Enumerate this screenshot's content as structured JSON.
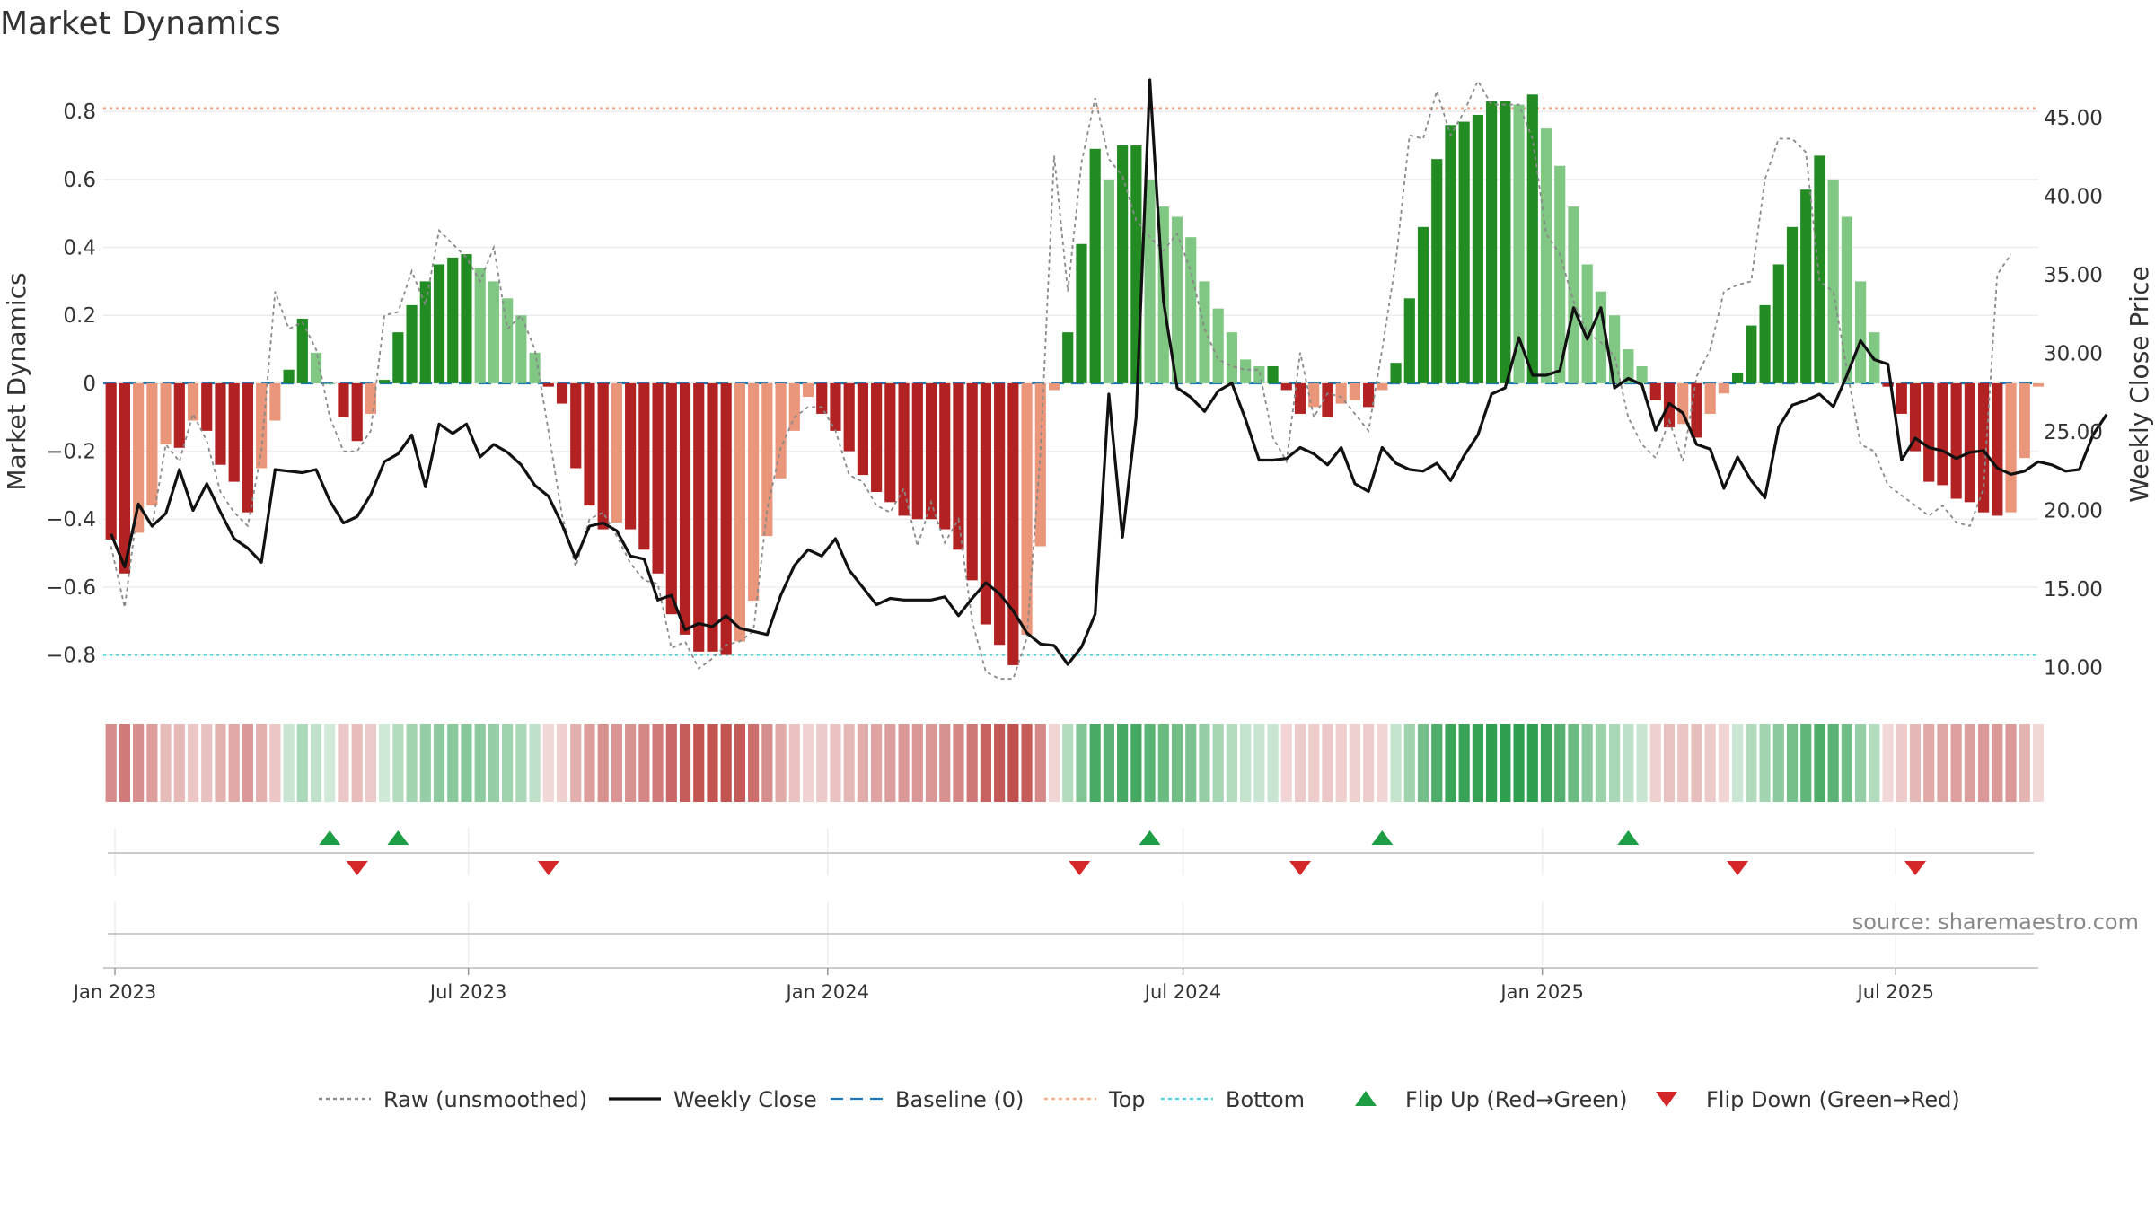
{
  "chart_data": {
    "type": "bar",
    "title": "Market Dynamics",
    "source": "source: sharemaestro.com",
    "ylabel_left": "Market Dynamics",
    "ylabel_right": "Weekly Close Price",
    "ylim_left": [
      -0.92,
      0.93
    ],
    "ylim_right": [
      8.2,
      48.2
    ],
    "left_ticks": [
      "0.8",
      "0.6",
      "0.4",
      "0.2",
      "0",
      "−0.2",
      "−0.4",
      "−0.6",
      "−0.8"
    ],
    "left_tick_values": [
      0.8,
      0.6,
      0.4,
      0.2,
      0,
      -0.2,
      -0.4,
      -0.6,
      -0.8
    ],
    "right_ticks": [
      "45.00",
      "40.00",
      "35.00",
      "30.00",
      "25.00",
      "20.00",
      "15.00",
      "10.00"
    ],
    "right_tick_values": [
      45,
      40,
      35,
      30,
      25,
      20,
      15,
      10
    ],
    "x_start": "2022-12-26",
    "x_end": "2025-09-12",
    "x_ticks": [
      {
        "label": "Jan 2023",
        "date": "2023-01-01"
      },
      {
        "label": "Jul 2023",
        "date": "2023-07-01"
      },
      {
        "label": "Jan 2024",
        "date": "2024-01-01"
      },
      {
        "label": "Jul 2024",
        "date": "2024-07-01"
      },
      {
        "label": "Jan 2025",
        "date": "2025-01-01"
      },
      {
        "label": "Jul 2025",
        "date": "2025-07-01"
      }
    ],
    "first_week": "2022-12-30",
    "reference_lines": {
      "top": 0.81,
      "bottom": -0.8,
      "baseline": 0
    },
    "grid": true,
    "legend_position": "bottom",
    "colors": {
      "strong_up": "#228b22",
      "weak_up": "#81c784",
      "strong_down": "#b22222",
      "weak_down": "#e9967a",
      "close_line": "#111111",
      "raw_line": "#888888",
      "top_line": "#f4a582",
      "bottom_line": "#4dd0e1",
      "baseline": "#1f77b4",
      "flip_up": "#1e9e44",
      "flip_down": "#d62728"
    },
    "series": [
      {
        "name": "Market Dynamics",
        "values": [
          -0.46,
          -0.56,
          -0.44,
          -0.36,
          -0.18,
          -0.19,
          -0.11,
          -0.14,
          -0.24,
          -0.29,
          -0.38,
          -0.25,
          -0.11,
          0.04,
          0.19,
          0.09,
          0,
          -0.1,
          -0.17,
          -0.09,
          0.01,
          0.15,
          0.23,
          0.3,
          0.35,
          0.37,
          0.38,
          0.34,
          0.3,
          0.25,
          0.2,
          0.09,
          -0.01,
          -0.06,
          -0.25,
          -0.36,
          -0.43,
          -0.41,
          -0.43,
          -0.49,
          -0.56,
          -0.68,
          -0.74,
          -0.79,
          -0.79,
          -0.8,
          -0.76,
          -0.64,
          -0.45,
          -0.28,
          -0.14,
          -0.04,
          -0.09,
          -0.14,
          -0.2,
          -0.27,
          -0.32,
          -0.35,
          -0.39,
          -0.4,
          -0.4,
          -0.43,
          -0.49,
          -0.58,
          -0.71,
          -0.77,
          -0.83,
          -0.74,
          -0.48,
          -0.02,
          0.15,
          0.41,
          0.69,
          0.6,
          0.7,
          0.7,
          0.6,
          0.52,
          0.49,
          0.43,
          0.3,
          0.22,
          0.15,
          0.07,
          0.05,
          0.05,
          -0.02,
          -0.09,
          -0.07,
          -0.1,
          -0.06,
          -0.05,
          -0.07,
          -0.02,
          0.06,
          0.25,
          0.46,
          0.66,
          0.76,
          0.77,
          0.79,
          0.83,
          0.83,
          0.82,
          0.85,
          0.75,
          0.64,
          0.52,
          0.35,
          0.27,
          0.2,
          0.1,
          0.05,
          -0.05,
          -0.13,
          -0.12,
          -0.16,
          -0.09,
          -0.03,
          0.03,
          0.17,
          0.23,
          0.35,
          0.46,
          0.57,
          0.67,
          0.6,
          0.49,
          0.3,
          0.15,
          -0.01,
          -0.09,
          -0.2,
          -0.29,
          -0.3,
          -0.34,
          -0.35,
          -0.38,
          -0.39,
          -0.38,
          -0.22,
          -0.01
        ]
      },
      {
        "name": "Raw (unsmoothed)",
        "values": [
          -0.48,
          -0.66,
          -0.35,
          -0.42,
          -0.18,
          -0.23,
          -0.09,
          -0.17,
          -0.32,
          -0.38,
          -0.42,
          -0.2,
          0.27,
          0.16,
          0.18,
          0.1,
          -0.1,
          -0.2,
          -0.2,
          -0.14,
          0.2,
          0.21,
          0.33,
          0.23,
          0.45,
          0.41,
          0.37,
          0.3,
          0.4,
          0.16,
          0.2,
          0.1,
          -0.14,
          -0.39,
          -0.54,
          -0.4,
          -0.38,
          -0.45,
          -0.53,
          -0.58,
          -0.59,
          -0.78,
          -0.76,
          -0.84,
          -0.81,
          -0.77,
          -0.76,
          -0.73,
          -0.37,
          -0.19,
          -0.1,
          -0.07,
          -0.07,
          -0.14,
          -0.27,
          -0.29,
          -0.36,
          -0.38,
          -0.31,
          -0.48,
          -0.35,
          -0.47,
          -0.4,
          -0.7,
          -0.85,
          -0.87,
          -0.87,
          -0.75,
          -0.2,
          0.67,
          0.27,
          0.65,
          0.84,
          0.66,
          0.61,
          0.48,
          0.43,
          0.39,
          0.44,
          0.33,
          0.16,
          0.07,
          0.05,
          0.04,
          0.04,
          -0.16,
          -0.23,
          0.09,
          -0.1,
          -0.03,
          -0.04,
          -0.09,
          -0.14,
          0.1,
          0.36,
          0.73,
          0.72,
          0.86,
          0.73,
          0.8,
          0.89,
          0.82,
          0.82,
          0.82,
          0.72,
          0.44,
          0.38,
          0.24,
          0.15,
          0.12,
          0.08,
          -0.1,
          -0.18,
          -0.22,
          -0.11,
          -0.23,
          0.02,
          0.1,
          0.27,
          0.29,
          0.3,
          0.6,
          0.72,
          0.72,
          0.68,
          0.3,
          0.27,
          0.04,
          -0.18,
          -0.2,
          -0.3,
          -0.33,
          -0.36,
          -0.39,
          -0.36,
          -0.41,
          -0.42,
          -0.31,
          0.32,
          0.38
        ]
      },
      {
        "name": "Weekly Close",
        "values": [
          18.5,
          16.4,
          20.4,
          19.0,
          19.8,
          22.6,
          20.0,
          21.7,
          19.9,
          18.2,
          17.6,
          16.7,
          22.6,
          22.5,
          22.4,
          22.6,
          20.6,
          19.2,
          19.6,
          21.0,
          23.1,
          23.6,
          24.8,
          21.5,
          25.5,
          24.9,
          25.5,
          23.4,
          24.2,
          23.7,
          22.9,
          21.6,
          20.9,
          19.1,
          16.9,
          19.0,
          19.2,
          18.7,
          17.1,
          16.9,
          14.3,
          14.6,
          12.4,
          12.8,
          12.6,
          13.3,
          12.5,
          12.3,
          12.1,
          14.6,
          16.5,
          17.5,
          17.1,
          18.2,
          16.2,
          15.1,
          14.0,
          14.4,
          14.3,
          14.3,
          14.3,
          14.5,
          13.3,
          14.4,
          15.4,
          14.7,
          13.6,
          12.2,
          11.5,
          11.4,
          10.2,
          11.3,
          13.4,
          27.4,
          18.3,
          25.9,
          47.4,
          33.3,
          27.8,
          27.2,
          26.3,
          27.6,
          28.1,
          25.8,
          23.2,
          23.2,
          23.3,
          24.0,
          23.6,
          22.9,
          24.0,
          21.7,
          21.2,
          24.0,
          23.0,
          22.6,
          22.5,
          23.0,
          21.9,
          23.5,
          24.8,
          27.4,
          27.8,
          31.0,
          28.6,
          28.6,
          28.9,
          32.9,
          30.9,
          32.9,
          27.8,
          28.4,
          28.0,
          25.1,
          26.8,
          26.2,
          24.2,
          23.9,
          21.4,
          23.4,
          21.9,
          20.8,
          25.3,
          26.7,
          27.0,
          27.4,
          26.6,
          28.6,
          30.8,
          29.6,
          29.3,
          23.2,
          24.6,
          24.0,
          23.8,
          23.3,
          23.7,
          23.8,
          22.7,
          22.3,
          22.5,
          23.1,
          22.9,
          22.5,
          22.6,
          24.8,
          26.1
        ]
      }
    ],
    "flips_up": [
      "2023-04-21",
      "2023-05-26",
      "2024-06-14",
      "2024-10-11",
      "2025-02-14"
    ],
    "flips_down": [
      "2023-05-05",
      "2023-08-11",
      "2024-08-30",
      "2024-05-09",
      "2025-04-11",
      "2025-07-11"
    ],
    "legend": [
      {
        "label": "Raw (unsmoothed)",
        "style": "dotted-line",
        "color": "#888888"
      },
      {
        "label": "Weekly Close",
        "style": "solid-line",
        "color": "#111111"
      },
      {
        "label": "Baseline (0)",
        "style": "dashed-line",
        "color": "#1f77b4"
      },
      {
        "label": "Top",
        "style": "dotted-line",
        "color": "#f4a582"
      },
      {
        "label": "Bottom",
        "style": "dotted-line",
        "color": "#4dd0e1"
      },
      {
        "label": "Flip Up (Red→Green)",
        "style": "triangle-up",
        "color": "#1e9e44"
      },
      {
        "label": "Flip Down (Green→Red)",
        "style": "triangle-down",
        "color": "#d62728"
      }
    ]
  }
}
